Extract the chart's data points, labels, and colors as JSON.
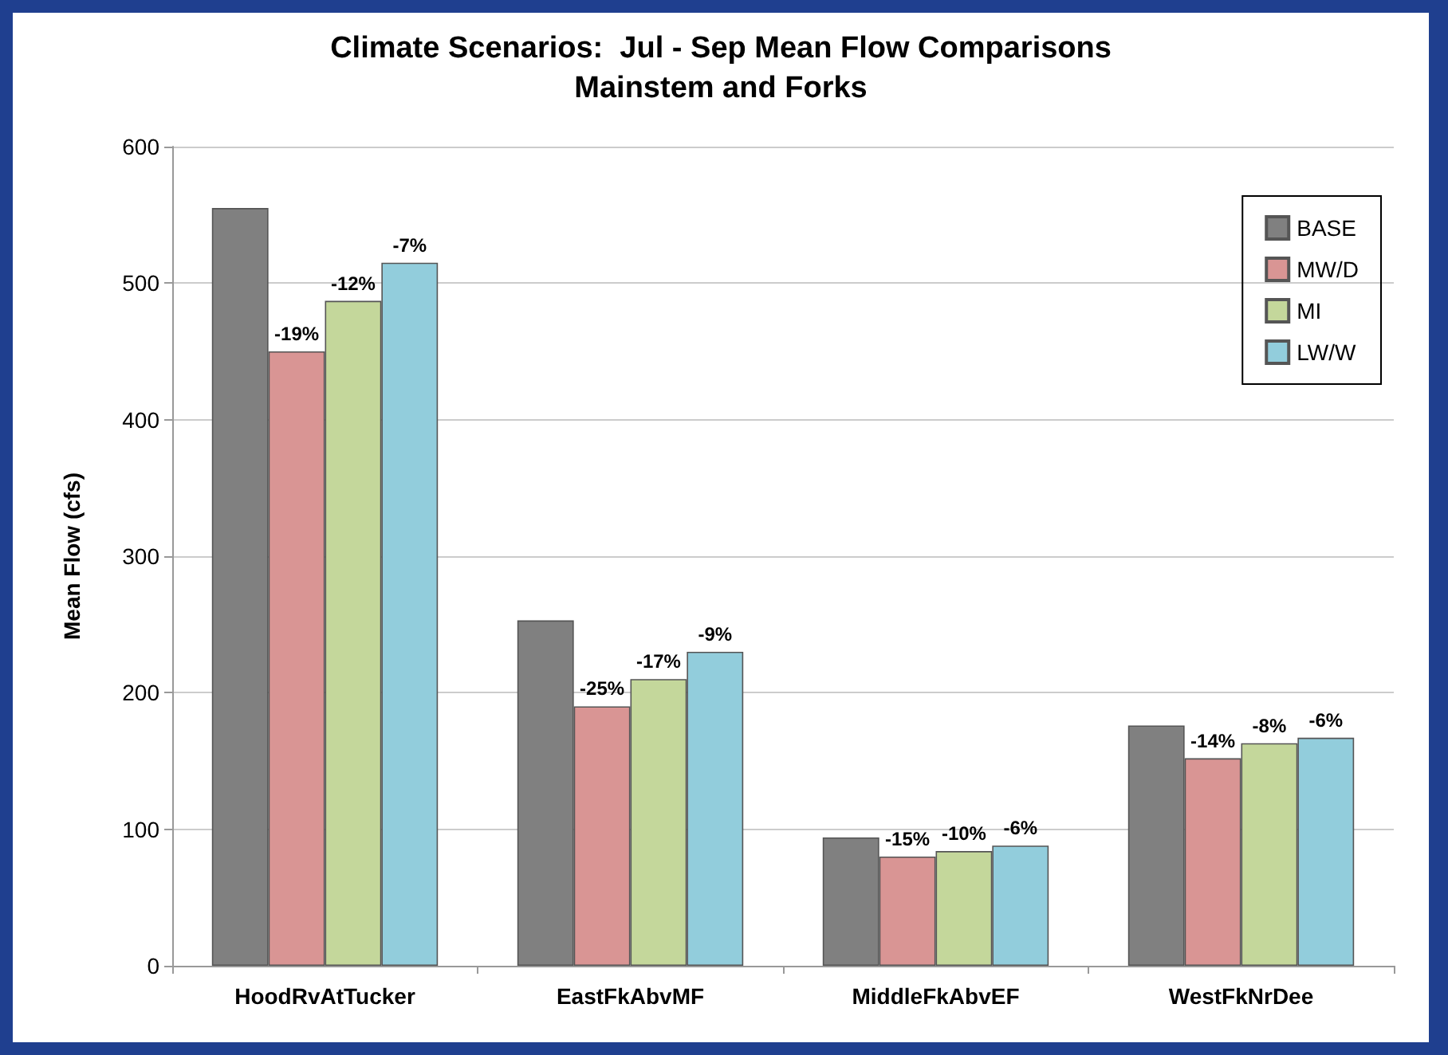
{
  "chart_data": {
    "type": "bar",
    "title": "Climate Scenarios:  Jul - Sep Mean Flow Comparisons",
    "subtitle": "Mainstem and Forks",
    "ylabel": "Mean Flow (cfs)",
    "categories": [
      "HoodRvAtTucker",
      "EastFkAbvMF",
      "MiddleFkAbvEF",
      "WestFkNrDee"
    ],
    "series": [
      {
        "name": "BASE",
        "color": "#808080",
        "values": [
          555,
          253,
          94,
          176
        ]
      },
      {
        "name": "MW/D",
        "color": "#d99594",
        "values": [
          450,
          190,
          80,
          152
        ]
      },
      {
        "name": "MI",
        "color": "#c4d79b",
        "values": [
          487,
          210,
          84,
          163
        ]
      },
      {
        "name": "LW/W",
        "color": "#92cddc",
        "values": [
          515,
          230,
          88,
          167
        ]
      }
    ],
    "annotations": [
      "-19%",
      "-12%",
      "-7%",
      "-25%",
      "-17%",
      "-9%",
      "-15%",
      "-10%",
      "-6%",
      "-14%",
      "-8%",
      "-6%"
    ],
    "ylim": [
      0,
      600
    ],
    "yticks": [
      0,
      100,
      200,
      300,
      400,
      500,
      600
    ],
    "grid": "y",
    "legend": "top right"
  }
}
